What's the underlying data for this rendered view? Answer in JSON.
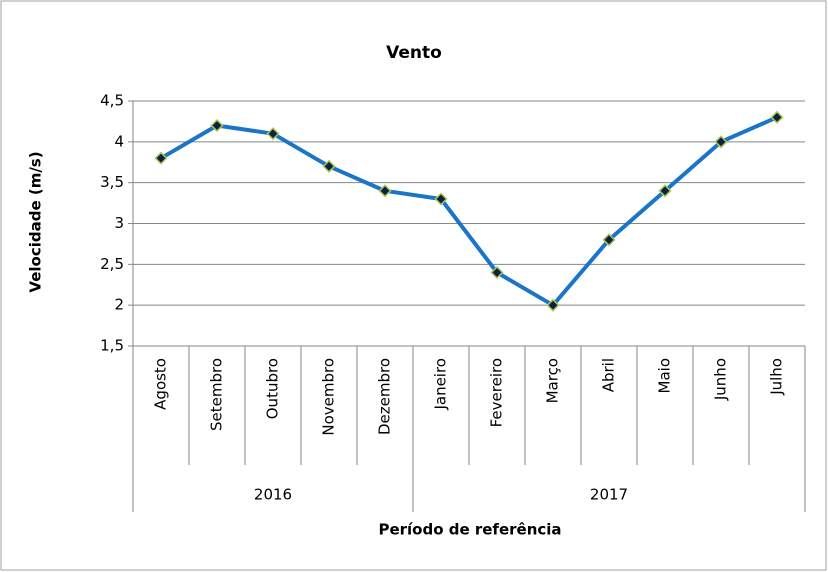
{
  "chart_data": {
    "type": "line",
    "title": "Vento",
    "x_label": "Período de referência",
    "y_label": "Velocidade (m/s)",
    "categories": [
      "Agosto",
      "Setembro",
      "Outubro",
      "Novembro",
      "Dezembro",
      "Janeiro",
      "Fevereiro",
      "Março",
      "Abril",
      "Maio",
      "Junho",
      "Julho"
    ],
    "groups": [
      {
        "label": "2016",
        "count": 5
      },
      {
        "label": "2017",
        "count": 7
      }
    ],
    "series": [
      {
        "name": "Vento",
        "color": "#1a75c9",
        "marker_color": "#0f1f4a",
        "marker_edge": "#a8c84a",
        "values": [
          3.8,
          4.2,
          4.1,
          3.7,
          3.4,
          3.3,
          2.4,
          2.0,
          2.8,
          3.4,
          4.0,
          4.3
        ]
      }
    ],
    "ylim": [
      1.5,
      4.5
    ],
    "yticks": [
      {
        "value": 1.5,
        "label": "1,5"
      },
      2,
      {
        "value": 2.5,
        "label": "2,5"
      },
      3,
      {
        "value": 3.5,
        "label": "3,5"
      },
      4,
      {
        "value": 4.5,
        "label": "4,5"
      }
    ],
    "grid": true
  }
}
